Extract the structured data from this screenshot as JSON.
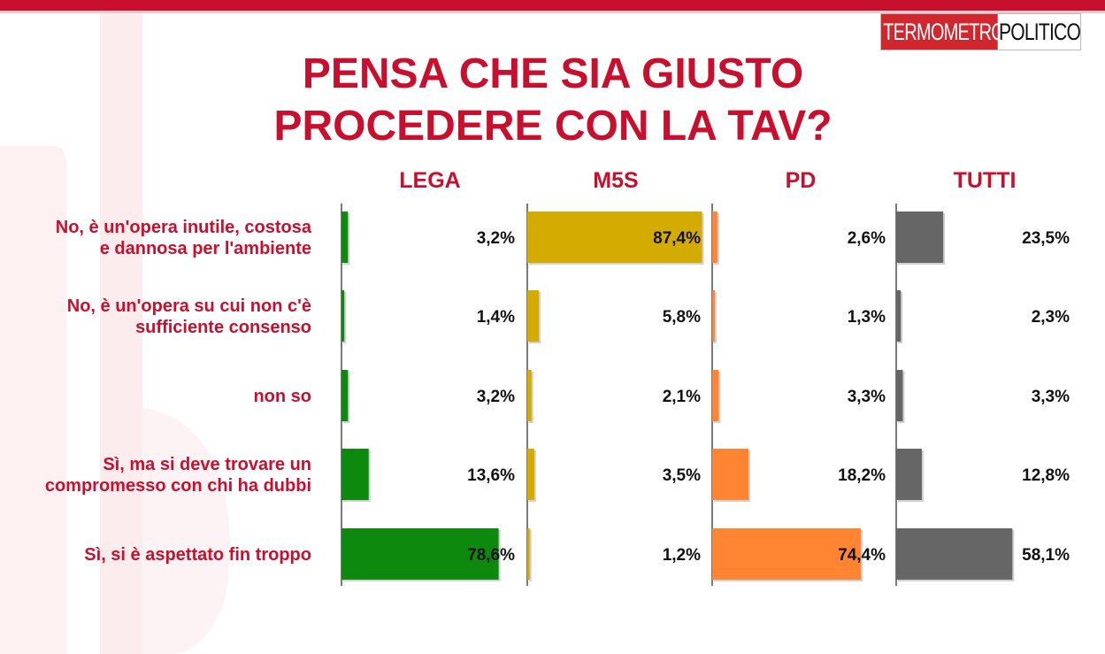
{
  "brand": {
    "logo_part1": "TERMOMETRO",
    "logo_part2": "POLITICO",
    "red": "#c8102e"
  },
  "chart_data": {
    "type": "bar",
    "orientation": "horizontal",
    "title": "PENSA CHE SIA GIUSTO PROCEDERE CON LA TAV?",
    "title_lines": [
      "PENSA CHE SIA GIUSTO",
      "PROCEDERE CON LA TAV?"
    ],
    "categories": [
      [
        "No, è un'opera inutile, costosa",
        "e dannosa per l'ambiente"
      ],
      [
        "No, è un'opera su cui non c'è",
        "sufficiente consenso"
      ],
      [
        "non so"
      ],
      [
        "Sì, ma si deve trovare un",
        "compromesso con chi ha dubbi"
      ],
      [
        "Sì, si è aspettato fin troppo"
      ]
    ],
    "series": [
      {
        "name": "LEGA",
        "color": "#0d8a0d",
        "values": [
          3.2,
          1.4,
          3.2,
          13.6,
          78.6
        ],
        "labels": [
          "3,2%",
          "1,4%",
          "3,2%",
          "13,6%",
          "78,6%"
        ]
      },
      {
        "name": "M5S",
        "color": "#d4ab00",
        "values": [
          87.4,
          5.8,
          2.1,
          3.5,
          1.2
        ],
        "labels": [
          "87,4%",
          "5,8%",
          "2,1%",
          "3,5%",
          "1,2%"
        ]
      },
      {
        "name": "PD",
        "color": "#ff8533",
        "values": [
          2.6,
          1.3,
          3.3,
          18.2,
          74.4
        ],
        "labels": [
          "2,6%",
          "1,3%",
          "3,3%",
          "18,2%",
          "74,4%"
        ]
      },
      {
        "name": "TUTTI",
        "color": "#666666",
        "values": [
          23.5,
          2.3,
          3.3,
          12.8,
          58.1
        ],
        "labels": [
          "23,5%",
          "2,3%",
          "3,3%",
          "12,8%",
          "58,1%"
        ]
      }
    ],
    "xlim": [
      0,
      100
    ],
    "grid": false,
    "legend": "none"
  }
}
